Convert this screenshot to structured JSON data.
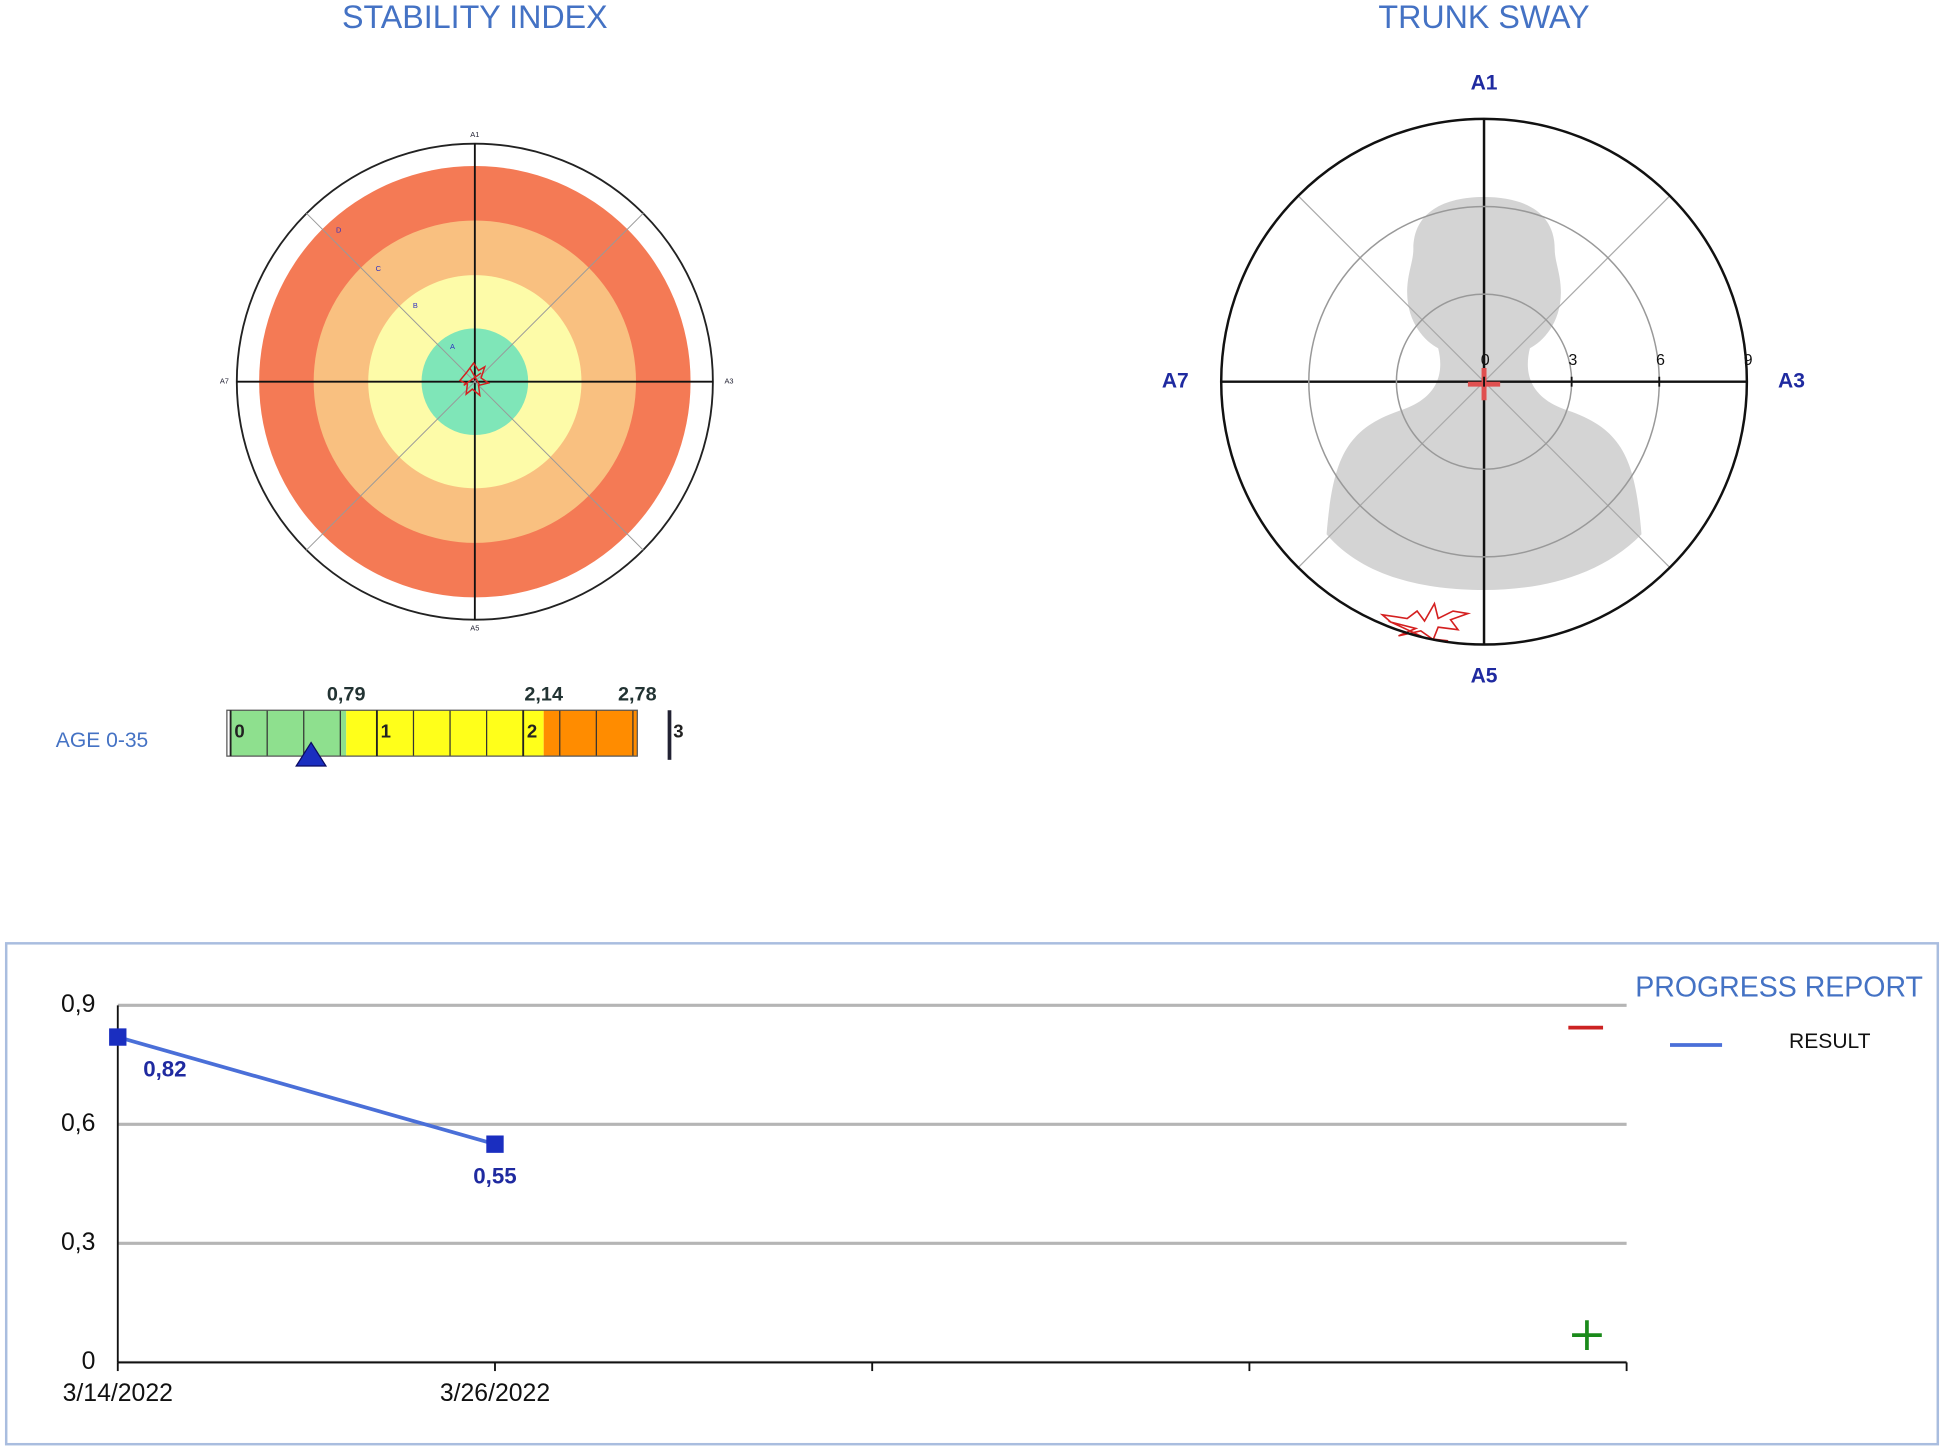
{
  "stability_index": {
    "title": "STABILITY INDEX",
    "axis_labels": [
      "A1",
      "A3",
      "A5",
      "A7"
    ],
    "zone_labels": [
      "A",
      "B",
      "C",
      "D"
    ]
  },
  "trunk_sway": {
    "title": "TRUNK SWAY",
    "axis_labels": [
      "A1",
      "A3",
      "A5",
      "A7"
    ],
    "rlim": [
      0,
      9
    ],
    "rticks": [
      0,
      3,
      6,
      9
    ]
  },
  "age_scale": {
    "label": "AGE 0-35",
    "xlim": [
      0,
      3
    ],
    "xticks": [
      0,
      1,
      2,
      3
    ],
    "thresholds": [
      {
        "value": 0.79,
        "label": "0,79"
      },
      {
        "value": 2.14,
        "label": "2,14"
      },
      {
        "value": 2.78,
        "label": "2,78"
      }
    ],
    "colors": [
      "#8ee08e",
      "#ffff1a",
      "#ff8c00"
    ],
    "marker": 0.55
  },
  "chart_data": {
    "type": "line",
    "title": "PROGRESS REPORT",
    "categories": [
      "3/14/2022",
      "3/26/2022",
      null,
      null,
      null
    ],
    "series": [
      {
        "name": "RESULT",
        "color": "#4a6fd8",
        "values": [
          0.82,
          0.55,
          null,
          null,
          null
        ],
        "value_labels": [
          "0,82",
          "0,55",
          null,
          null,
          null
        ]
      }
    ],
    "ylim": [
      0,
      0.9
    ],
    "yticks": [
      0,
      {
        "value": 0.3,
        "label": "0,3"
      },
      {
        "value": 0.6,
        "label": "0,6"
      },
      {
        "value": 0.9,
        "label": "0,9"
      }
    ],
    "grid": true
  }
}
